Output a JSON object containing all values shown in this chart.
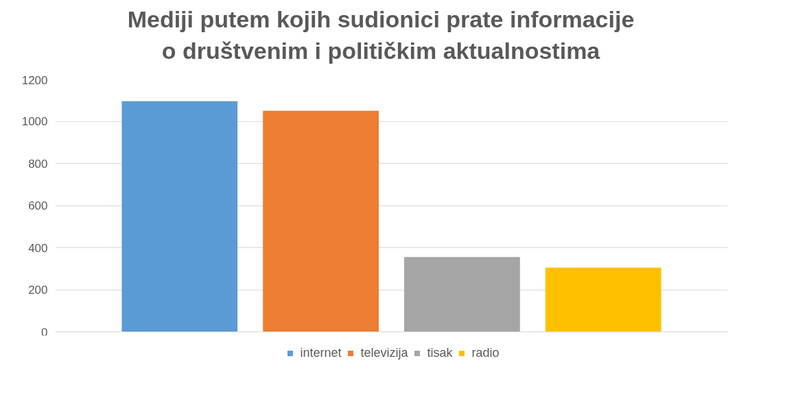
{
  "chart_data": {
    "type": "bar",
    "title": "Mediji putem kojih sudionici prate informacije\no društvenim i političkim aktualnostima",
    "categories": [
      null
    ],
    "series": [
      {
        "name": "internet",
        "color": "#5b9bd5",
        "values": [
          1095
        ]
      },
      {
        "name": "televizija",
        "color": "#ed7d31",
        "values": [
          1050
        ]
      },
      {
        "name": "tisak",
        "color": "#a5a5a5",
        "values": [
          355
        ]
      },
      {
        "name": "radio",
        "color": "#ffc000",
        "values": [
          305
        ]
      }
    ],
    "ylim": [
      0,
      1200
    ],
    "yticks": [
      0,
      200,
      400,
      600,
      800,
      1000,
      1200
    ],
    "grid": "y",
    "legend": "bottom",
    "tick_labels": "y"
  }
}
